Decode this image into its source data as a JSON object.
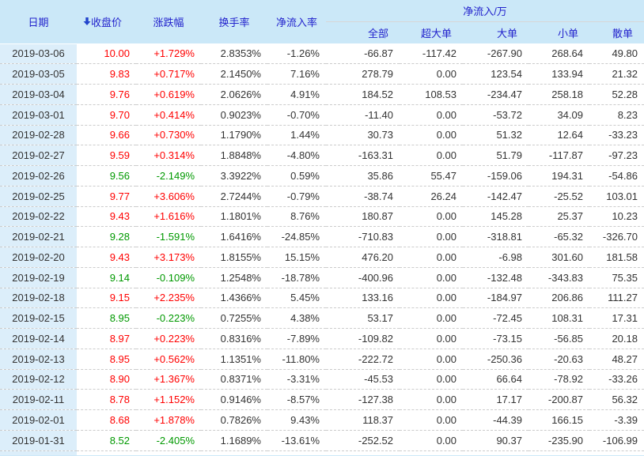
{
  "table": {
    "columns": {
      "date": "日期",
      "close": "收盘价",
      "change": "涨跌幅",
      "turnover": "换手率",
      "inflow_rate": "净流入率",
      "inflow_group": "净流入/万",
      "inflow_all": "全部",
      "inflow_super": "超大单",
      "inflow_large": "大单",
      "inflow_small": "小单",
      "inflow_retail": "散单"
    },
    "icons": {
      "sort": "sort-descending-arrow"
    },
    "colors": {
      "up": "#ff0000",
      "down": "#009900",
      "header_text": "#2222cc",
      "header_bg": "#cbe8f8",
      "date_col_bg": "#dceefa",
      "body_text": "#333333"
    },
    "rows": [
      {
        "date": "2019-03-06",
        "close": "10.00",
        "change": "+1.729%",
        "turnover": "2.8353%",
        "inflow_rate": "-1.26%",
        "all": "-66.87",
        "super_large": "-117.42",
        "large": "-267.90",
        "small": "268.64",
        "retail": "49.80"
      },
      {
        "date": "2019-03-05",
        "close": "9.83",
        "change": "+0.717%",
        "turnover": "2.1450%",
        "inflow_rate": "7.16%",
        "all": "278.79",
        "super_large": "0.00",
        "large": "123.54",
        "small": "133.94",
        "retail": "21.32"
      },
      {
        "date": "2019-03-04",
        "close": "9.76",
        "change": "+0.619%",
        "turnover": "2.0626%",
        "inflow_rate": "4.91%",
        "all": "184.52",
        "super_large": "108.53",
        "large": "-234.47",
        "small": "258.18",
        "retail": "52.28"
      },
      {
        "date": "2019-03-01",
        "close": "9.70",
        "change": "+0.414%",
        "turnover": "0.9023%",
        "inflow_rate": "-0.70%",
        "all": "-11.40",
        "super_large": "0.00",
        "large": "-53.72",
        "small": "34.09",
        "retail": "8.23"
      },
      {
        "date": "2019-02-28",
        "close": "9.66",
        "change": "+0.730%",
        "turnover": "1.1790%",
        "inflow_rate": "1.44%",
        "all": "30.73",
        "super_large": "0.00",
        "large": "51.32",
        "small": "12.64",
        "retail": "-33.23"
      },
      {
        "date": "2019-02-27",
        "close": "9.59",
        "change": "+0.314%",
        "turnover": "1.8848%",
        "inflow_rate": "-4.80%",
        "all": "-163.31",
        "super_large": "0.00",
        "large": "51.79",
        "small": "-117.87",
        "retail": "-97.23"
      },
      {
        "date": "2019-02-26",
        "close": "9.56",
        "change": "-2.149%",
        "turnover": "3.3922%",
        "inflow_rate": "0.59%",
        "all": "35.86",
        "super_large": "55.47",
        "large": "-159.06",
        "small": "194.31",
        "retail": "-54.86"
      },
      {
        "date": "2019-02-25",
        "close": "9.77",
        "change": "+3.606%",
        "turnover": "2.7244%",
        "inflow_rate": "-0.79%",
        "all": "-38.74",
        "super_large": "26.24",
        "large": "-142.47",
        "small": "-25.52",
        "retail": "103.01"
      },
      {
        "date": "2019-02-22",
        "close": "9.43",
        "change": "+1.616%",
        "turnover": "1.1801%",
        "inflow_rate": "8.76%",
        "all": "180.87",
        "super_large": "0.00",
        "large": "145.28",
        "small": "25.37",
        "retail": "10.23"
      },
      {
        "date": "2019-02-21",
        "close": "9.28",
        "change": "-1.591%",
        "turnover": "1.6416%",
        "inflow_rate": "-24.85%",
        "all": "-710.83",
        "super_large": "0.00",
        "large": "-318.81",
        "small": "-65.32",
        "retail": "-326.70"
      },
      {
        "date": "2019-02-20",
        "close": "9.43",
        "change": "+3.173%",
        "turnover": "1.8155%",
        "inflow_rate": "15.15%",
        "all": "476.20",
        "super_large": "0.00",
        "large": "-6.98",
        "small": "301.60",
        "retail": "181.58"
      },
      {
        "date": "2019-02-19",
        "close": "9.14",
        "change": "-0.109%",
        "turnover": "1.2548%",
        "inflow_rate": "-18.78%",
        "all": "-400.96",
        "super_large": "0.00",
        "large": "-132.48",
        "small": "-343.83",
        "retail": "75.35"
      },
      {
        "date": "2019-02-18",
        "close": "9.15",
        "change": "+2.235%",
        "turnover": "1.4366%",
        "inflow_rate": "5.45%",
        "all": "133.16",
        "super_large": "0.00",
        "large": "-184.97",
        "small": "206.86",
        "retail": "111.27"
      },
      {
        "date": "2019-02-15",
        "close": "8.95",
        "change": "-0.223%",
        "turnover": "0.7255%",
        "inflow_rate": "4.38%",
        "all": "53.17",
        "super_large": "0.00",
        "large": "-72.45",
        "small": "108.31",
        "retail": "17.31"
      },
      {
        "date": "2019-02-14",
        "close": "8.97",
        "change": "+0.223%",
        "turnover": "0.8316%",
        "inflow_rate": "-7.89%",
        "all": "-109.82",
        "super_large": "0.00",
        "large": "-73.15",
        "small": "-56.85",
        "retail": "20.18"
      },
      {
        "date": "2019-02-13",
        "close": "8.95",
        "change": "+0.562%",
        "turnover": "1.1351%",
        "inflow_rate": "-11.80%",
        "all": "-222.72",
        "super_large": "0.00",
        "large": "-250.36",
        "small": "-20.63",
        "retail": "48.27"
      },
      {
        "date": "2019-02-12",
        "close": "8.90",
        "change": "+1.367%",
        "turnover": "0.8371%",
        "inflow_rate": "-3.31%",
        "all": "-45.53",
        "super_large": "0.00",
        "large": "66.64",
        "small": "-78.92",
        "retail": "-33.26"
      },
      {
        "date": "2019-02-11",
        "close": "8.78",
        "change": "+1.152%",
        "turnover": "0.9146%",
        "inflow_rate": "-8.57%",
        "all": "-127.38",
        "super_large": "0.00",
        "large": "17.17",
        "small": "-200.87",
        "retail": "56.32"
      },
      {
        "date": "2019-02-01",
        "close": "8.68",
        "change": "+1.878%",
        "turnover": "0.7826%",
        "inflow_rate": "9.43%",
        "all": "118.37",
        "super_large": "0.00",
        "large": "-44.39",
        "small": "166.15",
        "retail": "-3.39"
      },
      {
        "date": "2019-01-31",
        "close": "8.52",
        "change": "-2.405%",
        "turnover": "1.1689%",
        "inflow_rate": "-13.61%",
        "all": "-252.52",
        "super_large": "0.00",
        "large": "90.37",
        "small": "-235.90",
        "retail": "-106.99"
      }
    ]
  }
}
